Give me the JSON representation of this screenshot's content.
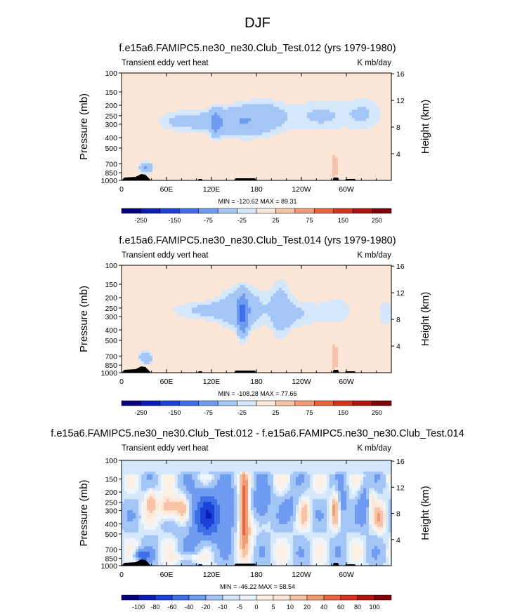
{
  "title": "DJF",
  "colors": {
    "background_panel_1_2": "#fce9dc",
    "cbar_a": [
      "#07007f",
      "#0b1db3",
      "#1b42d6",
      "#3f6fe6",
      "#6f9bf0",
      "#a4c6f7",
      "#d5e7fb",
      "#fbe6d7",
      "#f7c3a4",
      "#f09a72",
      "#e7653e",
      "#d23420",
      "#b0140f",
      "#800008"
    ],
    "cbar_b": [
      "#07007f",
      "#0b1db3",
      "#1b42d6",
      "#3f6fe6",
      "#6f9bf0",
      "#a4c6f7",
      "#d5e7fb",
      "#eef5fd",
      "#fcefe4",
      "#fbe6d7",
      "#f7c3a4",
      "#f09a72",
      "#e7653e",
      "#d23420",
      "#b0140f",
      "#800008"
    ]
  },
  "chart_data": [
    {
      "type": "heatmap",
      "title": "f.e15a6.FAMIPC5.ne30_ne30.Club_Test.012 (yrs 1979-1980)",
      "left_string": "Transient eddy vert heat",
      "right_string": "K mb/day",
      "xlabel": "",
      "x_ticks": [
        "0",
        "60E",
        "120E",
        "180",
        "120W",
        "60W"
      ],
      "ylabel": "Pressure (mb)",
      "y_ticks": [
        "100",
        "150",
        "200",
        "250",
        "300",
        "400",
        "500",
        "700",
        "850",
        "1000"
      ],
      "ylabel_right": "Height (km)",
      "y_ticks_right": [
        "16",
        "12",
        "8",
        "4"
      ],
      "stats": "MIN = -120.62  MAX =  89.31",
      "colorbar_labels": [
        "-250",
        "-150",
        "-75",
        "-25",
        "25",
        "75",
        "150",
        "250"
      ]
    },
    {
      "type": "heatmap",
      "title": "f.e15a6.FAMIPC5.ne30_ne30.Club_Test.014 (yrs 1979-1980)",
      "left_string": "Transient eddy vert heat",
      "right_string": "K mb/day",
      "xlabel": "",
      "x_ticks": [
        "0",
        "60E",
        "120E",
        "180",
        "120W",
        "60W"
      ],
      "ylabel": "Pressure (mb)",
      "y_ticks": [
        "100",
        "150",
        "200",
        "250",
        "300",
        "400",
        "500",
        "700",
        "850",
        "1000"
      ],
      "ylabel_right": "Height (km)",
      "y_ticks_right": [
        "16",
        "12",
        "8",
        "4"
      ],
      "stats": "MIN = -108.28  MAX =  77.66",
      "colorbar_labels": [
        "-250",
        "-150",
        "-75",
        "-25",
        "25",
        "75",
        "150",
        "250"
      ]
    },
    {
      "type": "heatmap",
      "title": "f.e15a6.FAMIPC5.ne30_ne30.Club_Test.012 - f.e15a6.FAMIPC5.ne30_ne30.Club_Test.014",
      "left_string": "Transient eddy vert heat",
      "right_string": "K mb/day",
      "xlabel": "",
      "x_ticks": [
        "0",
        "60E",
        "120E",
        "180",
        "120W",
        "60W"
      ],
      "ylabel": "Pressure (mb)",
      "y_ticks": [
        "100",
        "150",
        "200",
        "250",
        "300",
        "400",
        "500",
        "700",
        "850",
        "1000"
      ],
      "ylabel_right": "Height (km)",
      "y_ticks_right": [
        "16",
        "12",
        "8",
        "4"
      ],
      "stats": "MIN = -46.22  MAX = 58.54",
      "colorbar_labels": [
        "-100",
        "-80",
        "-60",
        "-40",
        "-20",
        "-10",
        "-5",
        "0",
        "5",
        "10",
        "20",
        "40",
        "60",
        "80",
        "100"
      ]
    }
  ]
}
